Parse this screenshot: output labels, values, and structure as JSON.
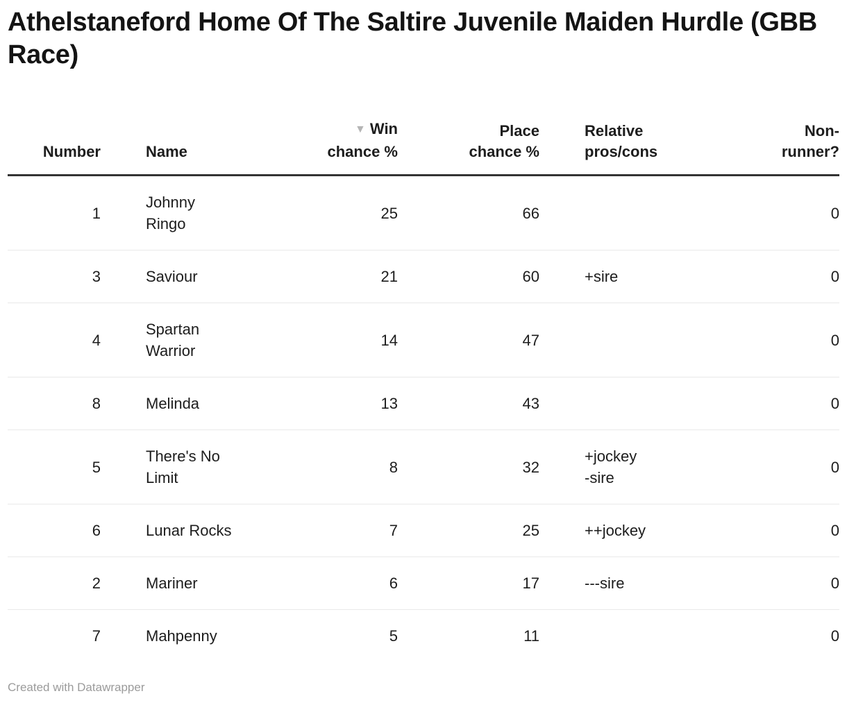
{
  "title": "Athelstaneford Home Of The Saltire Juvenile Maiden Hurdle (GBB Race)",
  "chart_data": {
    "type": "table",
    "title": "Athelstaneford Home Of The Saltire Juvenile Maiden Hurdle (GBB Race)",
    "columns": [
      "Number",
      "Name",
      "Win chance %",
      "Place chance %",
      "Relative pros/cons",
      "Non-runner?"
    ],
    "rows": [
      [
        1,
        "Johnny Ringo",
        25,
        66,
        "",
        0
      ],
      [
        3,
        "Saviour",
        21,
        60,
        "+sire",
        0
      ],
      [
        4,
        "Spartan Warrior",
        14,
        47,
        "",
        0
      ],
      [
        8,
        "Melinda",
        13,
        43,
        "",
        0
      ],
      [
        5,
        "There's No Limit",
        8,
        32,
        "+jockey\n-sire",
        0
      ],
      [
        6,
        "Lunar Rocks",
        7,
        25,
        "++jockey",
        0
      ],
      [
        2,
        "Mariner",
        6,
        17,
        "---sire",
        0
      ],
      [
        7,
        "Mahpenny",
        5,
        11,
        "",
        0
      ]
    ],
    "sorted_by": "Win chance %",
    "sort_direction": "descending"
  },
  "table": {
    "sort_icon": "▼",
    "columns": [
      {
        "label": "Number",
        "align": "right",
        "sorted": false
      },
      {
        "label": "Name",
        "align": "left",
        "sorted": false
      },
      {
        "label": "Win chance %",
        "align": "right",
        "sorted": true
      },
      {
        "label": "Place chance %",
        "align": "right",
        "sorted": false
      },
      {
        "label": "Relative pros/cons",
        "align": "left",
        "sorted": false
      },
      {
        "label": "Non-runner?",
        "align": "right",
        "sorted": false
      }
    ],
    "rows": [
      {
        "number": "1",
        "name": "Johnny Ringo",
        "win_chance_pct": "25",
        "place_chance_pct": "66",
        "relative_pros_cons": "",
        "non_runner": "0"
      },
      {
        "number": "3",
        "name": "Saviour",
        "win_chance_pct": "21",
        "place_chance_pct": "60",
        "relative_pros_cons": "+sire",
        "non_runner": "0"
      },
      {
        "number": "4",
        "name": "Spartan Warrior",
        "win_chance_pct": "14",
        "place_chance_pct": "47",
        "relative_pros_cons": "",
        "non_runner": "0"
      },
      {
        "number": "8",
        "name": "Melinda",
        "win_chance_pct": "13",
        "place_chance_pct": "43",
        "relative_pros_cons": "",
        "non_runner": "0"
      },
      {
        "number": "5",
        "name": "There's No Limit",
        "win_chance_pct": "8",
        "place_chance_pct": "32",
        "relative_pros_cons": "+jockey\n-sire",
        "non_runner": "0"
      },
      {
        "number": "6",
        "name": "Lunar Rocks",
        "win_chance_pct": "7",
        "place_chance_pct": "25",
        "relative_pros_cons": "++jockey",
        "non_runner": "0"
      },
      {
        "number": "2",
        "name": "Mariner",
        "win_chance_pct": "6",
        "place_chance_pct": "17",
        "relative_pros_cons": "---sire",
        "non_runner": "0"
      },
      {
        "number": "7",
        "name": "Mahpenny",
        "win_chance_pct": "5",
        "place_chance_pct": "11",
        "relative_pros_cons": "",
        "non_runner": "0"
      }
    ]
  },
  "footer": {
    "credit": "Created with Datawrapper"
  },
  "colors": {
    "title_text": "#141414",
    "text": "#1d1d1d",
    "header_border": "#333333",
    "row_divider": "#e9e9e9",
    "sort_arrow": "#b5b5b5",
    "credit_text": "#9b9b9b"
  }
}
